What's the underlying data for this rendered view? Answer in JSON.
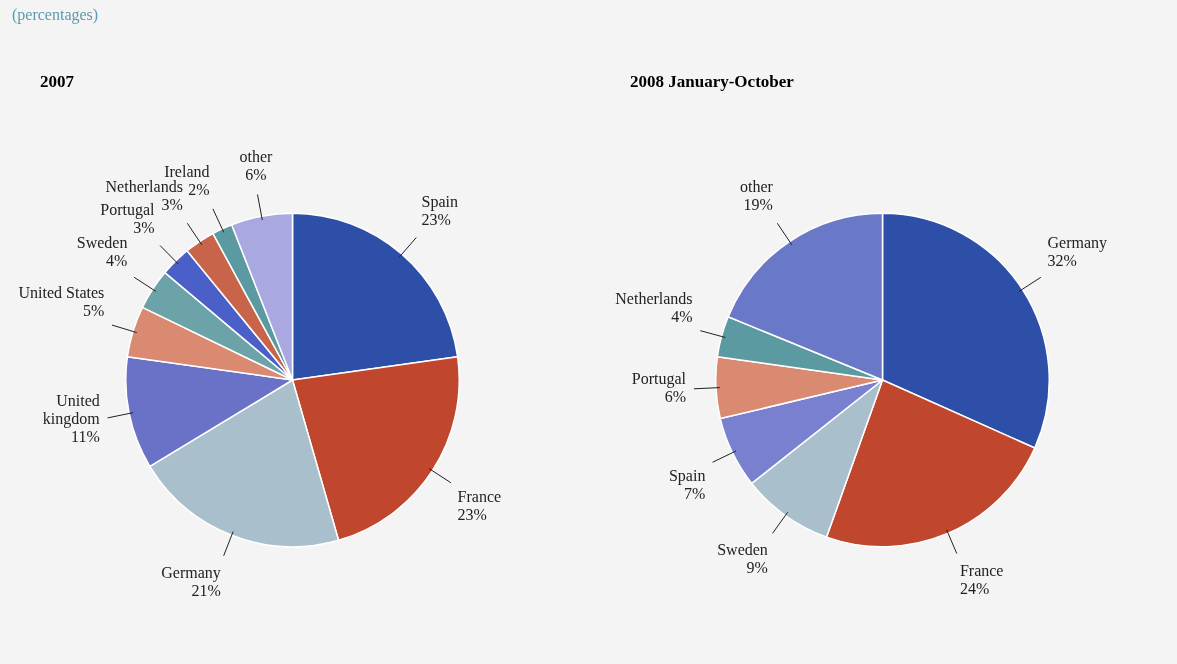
{
  "chart_data": [
    {
      "type": "pie",
      "title": "2007",
      "annotations": [
        "(percentages)"
      ],
      "legend": false,
      "categories": [
        "Spain",
        "France",
        "Germany",
        "United kingdom",
        "United States",
        "Sweden",
        "Portugal",
        "Netherlands",
        "Ireland",
        "other"
      ],
      "values": [
        23,
        23,
        21,
        11,
        5,
        4,
        3,
        3,
        2,
        6
      ],
      "value_labels": [
        "23%",
        "23%",
        "21%",
        "11%",
        "5%",
        "4%",
        "3%",
        "3%",
        "2%",
        "6%"
      ],
      "colors": [
        "#2e4fa8",
        "#c0462e",
        "#a9c0cc",
        "#6a72c8",
        "#d98a70",
        "#6ba3a8",
        "#4b5fc8",
        "#c8644a",
        "#5a9aa0",
        "#a9a8e0"
      ]
    },
    {
      "type": "pie",
      "title": "2008 January-October",
      "legend": false,
      "categories": [
        "Germany",
        "France",
        "Sweden",
        "Spain",
        "Portugal",
        "Netherlands",
        "other"
      ],
      "values": [
        32,
        24,
        9,
        7,
        6,
        4,
        19
      ],
      "value_labels": [
        "32%",
        "24%",
        "9%",
        "7%",
        "6%",
        "4%",
        "19%"
      ],
      "colors": [
        "#2e4fa8",
        "#c0462e",
        "#a9c0cc",
        "#7a80d0",
        "#d98a70",
        "#5a9aa0",
        "#6a78c8"
      ]
    }
  ]
}
